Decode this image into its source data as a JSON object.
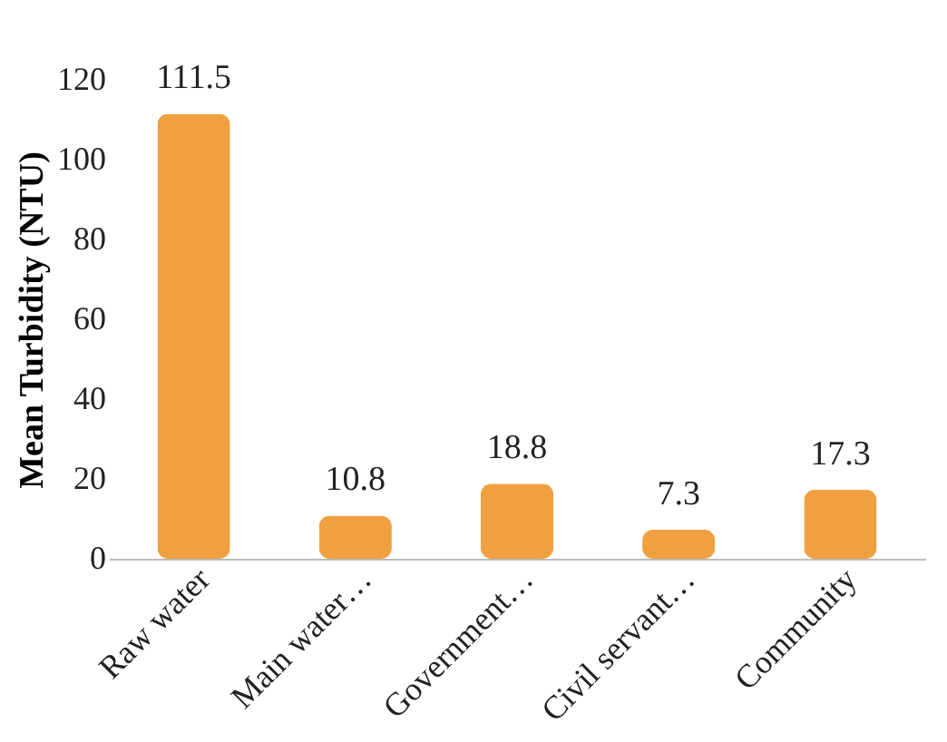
{
  "chart_data": {
    "type": "bar",
    "ylabel": "Mean Turbidity (NTU)",
    "categories": [
      "Raw water",
      "Main water…",
      "Government…",
      "Civil servant…",
      "Community"
    ],
    "values": [
      111.5,
      10.8,
      18.8,
      7.3,
      17.3
    ],
    "color": "#f0a040",
    "ylim": [
      0,
      120
    ],
    "yticks": [
      0,
      20,
      40,
      60,
      80,
      100,
      120
    ],
    "data_labels": true,
    "grid": false
  }
}
